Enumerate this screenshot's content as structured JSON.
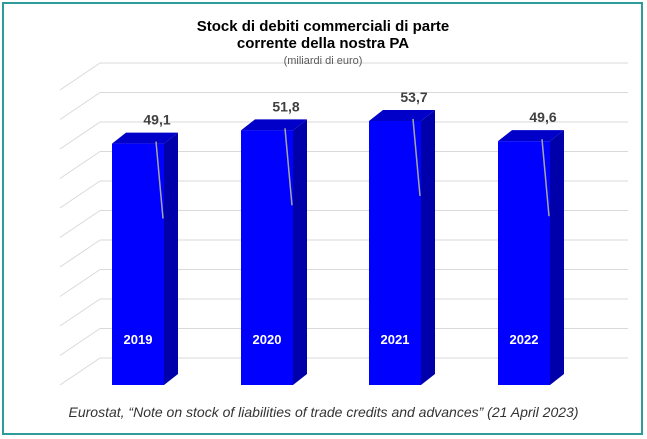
{
  "chart_data": {
    "type": "bar",
    "title_lines": [
      "Stock di debiti commerciali di parte",
      "corrente della nostra PA"
    ],
    "subtitle": "(miliardi di euro)",
    "categories": [
      "2019",
      "2020",
      "2021",
      "2022"
    ],
    "values": [
      49.1,
      51.8,
      53.7,
      49.6
    ],
    "value_labels": [
      "49,1",
      "51,8",
      "53,7",
      "49,6"
    ],
    "ylim": [
      0,
      60
    ],
    "grid": true,
    "legend": "none",
    "xlabel": "",
    "ylabel": "",
    "colors": {
      "bar_front": "#0000ff",
      "bar_side": "#0000aa",
      "bar_top": "#0000c8",
      "grid": "#d9d9d9",
      "leader": "#a6a6a6"
    }
  },
  "source": "Eurostat, “Note on stock of liabilities of trade credits and advances” (21 April 2023)"
}
